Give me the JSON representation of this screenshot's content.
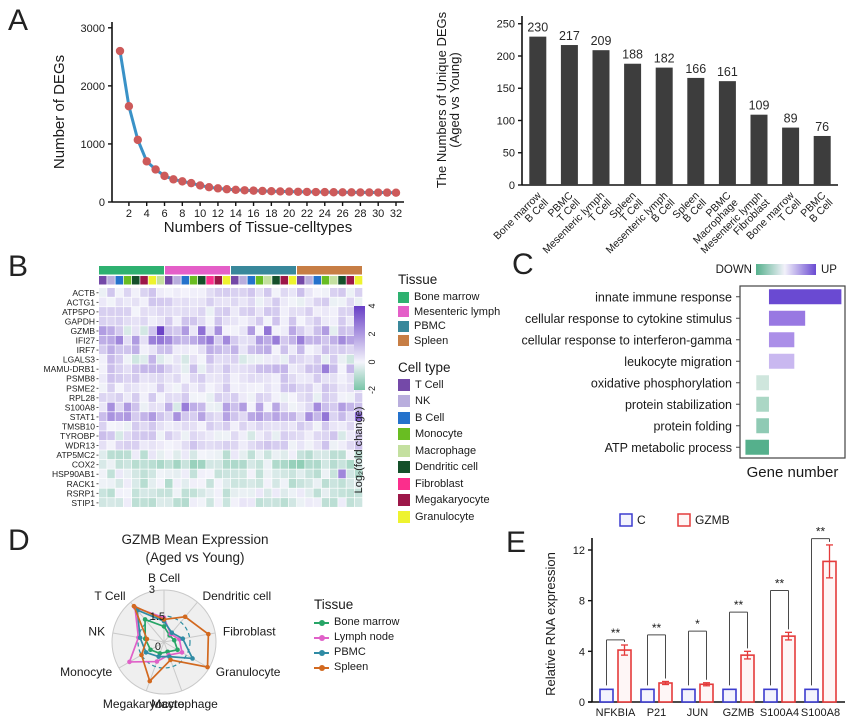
{
  "panels": {
    "a": "A",
    "b": "B",
    "c": "C",
    "d": "D",
    "e": "E"
  },
  "chart_data": [
    {
      "id": "degs-per-celltype-count",
      "type": "line",
      "xlabel": "Numbers of Tissue-celltypes",
      "ylabel": "Number of DEGs",
      "x": [
        1,
        2,
        3,
        4,
        5,
        6,
        7,
        8,
        9,
        10,
        11,
        12,
        13,
        14,
        15,
        16,
        17,
        18,
        19,
        20,
        21,
        22,
        23,
        24,
        25,
        26,
        27,
        28,
        29,
        30,
        31,
        32
      ],
      "y": [
        2600,
        1650,
        1070,
        700,
        560,
        450,
        390,
        355,
        325,
        285,
        255,
        235,
        220,
        210,
        202,
        196,
        190,
        186,
        182,
        179,
        176,
        174,
        172,
        170,
        168,
        167,
        166,
        165,
        164,
        163,
        162,
        160
      ],
      "yticks": [
        0,
        1000,
        2000,
        3000
      ],
      "xticks": [
        2,
        4,
        6,
        8,
        10,
        12,
        14,
        16,
        18,
        20,
        22,
        24,
        26,
        28,
        30,
        32
      ],
      "ylim": [
        0,
        3100
      ],
      "grid": false,
      "line_color": "#3a92c7",
      "point_color": "#cd5a5a"
    },
    {
      "id": "unique-degs-by-tissue-celltype",
      "type": "bar",
      "ylabel_lines": [
        "The Numbers of Unique DEGs",
        "(Aged vs Young)"
      ],
      "categories": [
        [
          "Bone marrow",
          "B Cell"
        ],
        [
          "PBMC",
          "T Cell"
        ],
        [
          "Mesenteric lymph",
          "T Cell"
        ],
        [
          "Spleen",
          "T Cell"
        ],
        [
          "Mesenteric lymph",
          "B Cell"
        ],
        [
          "Spleen",
          "B Cell"
        ],
        [
          "PBMC",
          "Macrophage"
        ],
        [
          "Mesenteric lymph",
          "Fibroblast"
        ],
        [
          "Bone marrow",
          "T Cell"
        ],
        [
          "PBMC",
          "B Cell"
        ]
      ],
      "values": [
        230,
        217,
        209,
        188,
        182,
        166,
        161,
        109,
        89,
        76
      ],
      "yticks": [
        0,
        50,
        100,
        150,
        200,
        250
      ],
      "ylim": [
        0,
        262
      ],
      "bar_color": "#3d3d3d"
    },
    {
      "id": "deg-heatmap",
      "type": "heatmap",
      "genes": [
        "ACTB",
        "ACTG1",
        "ATP5PO",
        "GAPDH",
        "GZMB",
        "IFI27",
        "IRF7",
        "LGALS3",
        "MAMU-DRB1",
        "PSMB8",
        "PSME2",
        "RPL28",
        "S100A8",
        "STAT1",
        "TMSB10",
        "TYROBP",
        "WDR13",
        "ATP5MC2",
        "COX2",
        "HSP90AB1",
        "RACK1",
        "RSRP1",
        "STIP1"
      ],
      "value_label": "Log₂(fold change)",
      "colorbar_ticks": [
        4,
        2,
        0,
        -2
      ],
      "value_range": [
        -2,
        4
      ],
      "tissue_legend_title": "Tissue",
      "celltype_legend_title": "Cell type",
      "tissues": [
        {
          "name": "Bone marrow",
          "color": "#2eb170"
        },
        {
          "name": "Mesenteric lymph",
          "color": "#e45fc8"
        },
        {
          "name": "PBMC",
          "color": "#39889b"
        },
        {
          "name": "Spleen",
          "color": "#c77e45"
        }
      ],
      "cell_types": [
        {
          "name": "T Cell",
          "color": "#7449a8"
        },
        {
          "name": "NK",
          "color": "#b9aedd"
        },
        {
          "name": "B Cell",
          "color": "#2472cc"
        },
        {
          "name": "Monocyte",
          "color": "#69bd22"
        },
        {
          "name": "Macrophage",
          "color": "#c4e0a0"
        },
        {
          "name": "Dendritic cell",
          "color": "#14502a"
        },
        {
          "name": "Fibroblast",
          "color": "#fb2e8c"
        },
        {
          "name": "Megakaryocyte",
          "color": "#9c1748"
        },
        {
          "name": "Granulocyte",
          "color": "#eef32f"
        }
      ],
      "column_celltype_index": [
        0,
        1,
        2,
        3,
        5,
        7,
        8,
        4,
        0,
        1,
        2,
        3,
        5,
        6,
        7,
        8,
        0,
        1,
        2,
        3,
        4,
        5,
        7,
        8,
        0,
        1,
        2,
        3,
        4,
        5,
        7,
        8
      ],
      "row_base": [
        0.55,
        0.5,
        0.45,
        0.5,
        0.8,
        1.5,
        0.8,
        0.35,
        0.6,
        0.55,
        0.5,
        0.4,
        0.7,
        1.35,
        0.45,
        0.4,
        0.5,
        -0.35,
        -0.85,
        -0.4,
        -0.45,
        -0.4,
        -0.35
      ],
      "row_spread": [
        0.7,
        0.7,
        0.6,
        0.6,
        1.4,
        1.3,
        0.8,
        1.1,
        0.9,
        0.6,
        0.6,
        0.6,
        1.3,
        0.9,
        0.6,
        0.9,
        0.7,
        0.7,
        0.8,
        0.7,
        0.7,
        0.7,
        0.7
      ],
      "hot_cells": [
        [
          4,
          7,
          3.9
        ],
        [
          4,
          12,
          2.9
        ],
        [
          4,
          14,
          2.2
        ],
        [
          4,
          20,
          2.8
        ],
        [
          8,
          27,
          2.6
        ],
        [
          12,
          1,
          2.2
        ],
        [
          12,
          10,
          2.6
        ],
        [
          12,
          26,
          2.3
        ],
        [
          13,
          27,
          2.8
        ],
        [
          13,
          31,
          3.0
        ],
        [
          19,
          29,
          2.4
        ]
      ]
    },
    {
      "id": "go-enrichment",
      "type": "bar-diverging",
      "xlabel": "Gene number",
      "legend_down": "DOWN",
      "legend_up": "UP",
      "terms": [
        "innate immune response",
        "cellular response to cytokine stimulus",
        "cellular response to interferon-gamma",
        "leukocyte migration",
        "oxidative phosphorylation",
        "protein stabilization",
        "protein folding",
        "ATP metabolic process"
      ],
      "values": [
        40,
        20,
        14,
        14,
        -7,
        -7,
        -7,
        -13
      ],
      "colors": [
        "#6a4ad2",
        "#9878e2",
        "#ab8fe8",
        "#c9b8f0",
        "#cfe6dd",
        "#abd7c5",
        "#8fcab4",
        "#55b08c"
      ],
      "xlim": [
        -16,
        42
      ],
      "down_color": "#55b08c",
      "up_color": "#6a4ad2"
    },
    {
      "id": "gzmb-radar",
      "type": "radar",
      "title_lines": [
        "GZMB Mean Expression",
        "(Aged vs Young)"
      ],
      "axes": [
        "B Cell",
        "Dendritic cell",
        "Fibroblast",
        "Granulocyte",
        "Macrophage",
        "Megakaryocyte",
        "Monocyte",
        "NK",
        "T Cell"
      ],
      "rticks": [
        0,
        1.5,
        3
      ],
      "rmax": 3,
      "legend_title": "Tissue",
      "series": [
        {
          "name": "Bone marrow",
          "color": "#27a567",
          "values": [
            0.9,
            0.5,
            0.6,
            0.9,
            0.6,
            0.7,
            0.9,
            1.1,
            1.7
          ]
        },
        {
          "name": "Lymph node",
          "color": "#e060c8",
          "values": [
            1.4,
            0.6,
            0.9,
            1.2,
            0.8,
            1.2,
            2.3,
            1.5,
            2.6
          ]
        },
        {
          "name": "PBMC",
          "color": "#2f8ba4",
          "values": [
            1.2,
            0.7,
            1.1,
            1.9,
            0.9,
            0.9,
            1.2,
            1.4,
            2.4
          ]
        },
        {
          "name": "Spleen",
          "color": "#d2691f",
          "values": [
            1.3,
            1.9,
            2.6,
            2.9,
            1.1,
            2.4,
            1.5,
            1.0,
            2.7
          ]
        }
      ]
    },
    {
      "id": "qpcr-validation",
      "type": "bar-grouped",
      "ylabel": "Relative RNA expression",
      "categories": [
        "NFKBIA",
        "P21",
        "JUN",
        "GZMB",
        "S100A4",
        "S100A8"
      ],
      "yticks": [
        0,
        4,
        8,
        12
      ],
      "ylim": [
        0,
        13.8
      ],
      "series": [
        {
          "name": "C",
          "color": "#3c3ccf",
          "fill": "#f3f3fd",
          "values": [
            1,
            1,
            1,
            1,
            1,
            1
          ]
        },
        {
          "name": "GZMB",
          "color": "#e43b3b",
          "fill": "#fef6f6",
          "values": [
            4.1,
            1.5,
            1.4,
            3.7,
            5.2,
            11.1
          ],
          "errors": [
            0.4,
            0.12,
            0.12,
            0.3,
            0.3,
            1.3
          ]
        }
      ],
      "significance": [
        "**",
        "**",
        "*",
        "**",
        "**",
        "**"
      ],
      "bracket_heights": [
        4.9,
        5.3,
        5.6,
        7.1,
        8.8,
        12.9
      ]
    }
  ]
}
